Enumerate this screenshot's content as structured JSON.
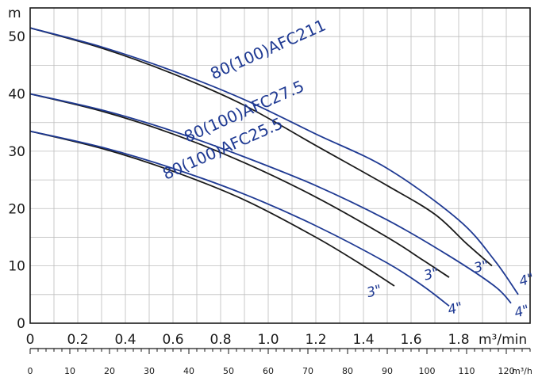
{
  "chart_data": {
    "type": "line",
    "ylabel": "m",
    "xlabel": "m³/min",
    "x2label": "m³/h",
    "xlim": [
      0,
      2.1
    ],
    "ylim": [
      0,
      55
    ],
    "x2lim": [
      0,
      126
    ],
    "y_ticks": [
      "0",
      "10",
      "20",
      "30",
      "40",
      "50"
    ],
    "x_ticks": [
      "0",
      "0.2",
      "0.4",
      "0.6",
      "0.8",
      "1.0",
      "1.2",
      "1.4",
      "1.6",
      "1.8"
    ],
    "x2_ticks": [
      "0",
      "10",
      "20",
      "30",
      "40",
      "50",
      "60",
      "70",
      "80",
      "90",
      "100",
      "110",
      "120"
    ],
    "grid": true,
    "colors": {
      "pipe_3in": "#1a1a1a",
      "pipe_4in": "#1f3a93",
      "grid": "#bdbdbd",
      "axis": "#1a1a1a"
    },
    "series": [
      {
        "name": "80(100)AFC211",
        "pipe": "3\"",
        "x": [
          0,
          0.3,
          0.6,
          0.9,
          1.2,
          1.5,
          1.7,
          1.83,
          1.94
        ],
        "y": [
          51.5,
          48,
          43.5,
          38,
          31,
          24,
          19,
          14,
          10
        ]
      },
      {
        "name": "80(100)AFC211",
        "pipe": "4\"",
        "x": [
          0,
          0.3,
          0.6,
          0.9,
          1.2,
          1.5,
          1.8,
          1.95,
          2.05
        ],
        "y": [
          51.5,
          48.2,
          44,
          39,
          33,
          27,
          18,
          11,
          5
        ]
      },
      {
        "name": "80(100)AFC27.5",
        "pipe": "3\"",
        "x": [
          0,
          0.3,
          0.6,
          0.9,
          1.2,
          1.5,
          1.65,
          1.76
        ],
        "y": [
          40,
          37,
          33,
          28,
          22,
          15,
          11,
          8
        ]
      },
      {
        "name": "80(100)AFC27.5",
        "pipe": "4\"",
        "x": [
          0,
          0.3,
          0.6,
          0.9,
          1.2,
          1.5,
          1.75,
          1.95,
          2.02
        ],
        "y": [
          40,
          37.2,
          33.5,
          29,
          24,
          18,
          12,
          6.5,
          3.5
        ]
      },
      {
        "name": "80(100)AFC25.5",
        "pipe": "3\"",
        "x": [
          0,
          0.3,
          0.6,
          0.9,
          1.2,
          1.4,
          1.53
        ],
        "y": [
          33.5,
          30.5,
          26.5,
          21.5,
          15,
          10,
          6.5
        ]
      },
      {
        "name": "80(100)AFC25.5",
        "pipe": "4\"",
        "x": [
          0,
          0.3,
          0.6,
          0.9,
          1.2,
          1.5,
          1.65,
          1.76
        ],
        "y": [
          33.5,
          30.7,
          27,
          22.5,
          17,
          10.5,
          6.5,
          3
        ]
      }
    ],
    "annotations": [
      {
        "text": "80(100)AFC211",
        "x": 0.77,
        "y": 42.5,
        "rotate": -24
      },
      {
        "text": "80(100)AFC27.5",
        "x": 0.66,
        "y": 31.5,
        "rotate": -24
      },
      {
        "text": "80(100)AFC25.5",
        "x": 0.57,
        "y": 25,
        "rotate": -24
      },
      {
        "text": "3\"",
        "x": 1.42,
        "y": 4.5,
        "rotate": -15
      },
      {
        "text": "3\"",
        "x": 1.66,
        "y": 7.5,
        "rotate": -15
      },
      {
        "text": "3\"",
        "x": 1.87,
        "y": 8.8,
        "rotate": -15
      },
      {
        "text": "4\"",
        "x": 1.76,
        "y": 1.5,
        "rotate": -15
      },
      {
        "text": "4\"",
        "x": 2.04,
        "y": 1.0,
        "rotate": -15
      },
      {
        "text": "4\"",
        "x": 2.06,
        "y": 6.5,
        "rotate": -15
      }
    ]
  }
}
